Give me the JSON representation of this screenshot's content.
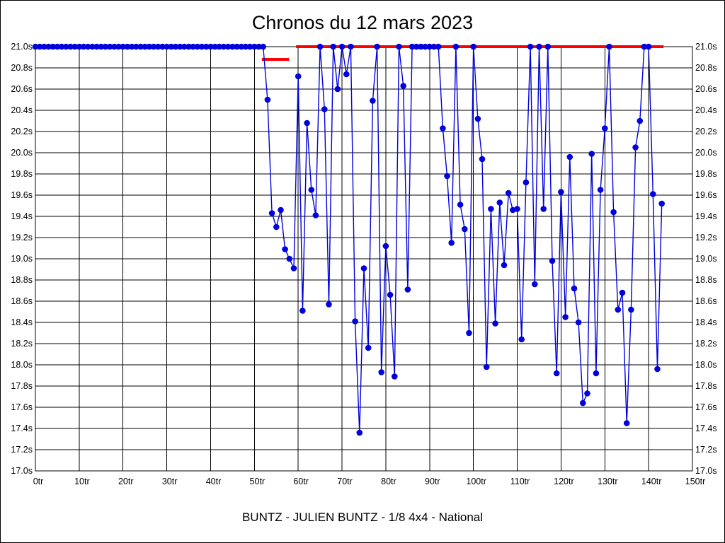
{
  "title": "Chronos du 12 mars 2023",
  "caption": "BUNTZ - JULIEN BUNTZ - 1/8 4x4 - National",
  "colors": {
    "series_blue": "#0000dd",
    "reference_red": "#ff0000",
    "grid": "#000000",
    "background": "#ffffff",
    "text": "#000000"
  },
  "chart_data": {
    "type": "line",
    "title": "Chronos du 12 mars 2023",
    "xlabel_unit": "tr",
    "ylabel_unit": "s",
    "xlim": [
      0,
      150
    ],
    "ylim": [
      17.0,
      21.0
    ],
    "x_tick_step": 10,
    "y_tick_step": 0.2,
    "grid": true,
    "x_tick_labels": [
      "0tr",
      "10tr",
      "20tr",
      "30tr",
      "40tr",
      "50tr",
      "60tr",
      "70tr",
      "80tr",
      "90tr",
      "100tr",
      "110tr",
      "120tr",
      "130tr",
      "140tr",
      "150tr"
    ],
    "y_tick_labels": [
      "17.0s",
      "17.2s",
      "17.4s",
      "17.6s",
      "17.8s",
      "18.0s",
      "18.2s",
      "18.4s",
      "18.6s",
      "18.8s",
      "19.0s",
      "19.2s",
      "19.4s",
      "19.6s",
      "19.8s",
      "20.0s",
      "20.2s",
      "20.4s",
      "20.6s",
      "20.8s",
      "21.0s"
    ],
    "series": [
      {
        "name": "chrono-per-lap",
        "lap_start": 0,
        "times": [
          21.0,
          21.0,
          21.0,
          21.0,
          21.0,
          21.0,
          21.0,
          21.0,
          21.0,
          21.0,
          21.0,
          21.0,
          21.0,
          21.0,
          21.0,
          21.0,
          21.0,
          21.0,
          21.0,
          21.0,
          21.0,
          21.0,
          21.0,
          21.0,
          21.0,
          21.0,
          21.0,
          21.0,
          21.0,
          21.0,
          21.0,
          21.0,
          21.0,
          21.0,
          21.0,
          21.0,
          21.0,
          21.0,
          21.0,
          21.0,
          21.0,
          21.0,
          21.0,
          21.0,
          21.0,
          21.0,
          21.0,
          21.0,
          21.0,
          21.0,
          21.0,
          21.0,
          21.0,
          20.5,
          19.43,
          19.3,
          19.46,
          19.09,
          19.0,
          18.91,
          20.72,
          18.51,
          20.28,
          19.65,
          19.41,
          21.0,
          20.41,
          18.57,
          21.0,
          20.6,
          21.0,
          20.74,
          21.0,
          18.41,
          17.36,
          18.91,
          18.16,
          20.49,
          21.0,
          17.93,
          19.12,
          18.66,
          17.89,
          21.0,
          20.63,
          18.71,
          21.0,
          21.0,
          21.0,
          21.0,
          21.0,
          21.0,
          21.0,
          20.23,
          19.78,
          19.15,
          21.0,
          19.51,
          19.28,
          18.3,
          21.0,
          20.32,
          19.94,
          17.98,
          19.47,
          18.39,
          19.53,
          18.94,
          19.62,
          19.46,
          19.47,
          18.24,
          19.72,
          21.0,
          18.76,
          21.0,
          19.47,
          21.0,
          18.98,
          17.92,
          19.63,
          18.45,
          19.96,
          18.72,
          18.4,
          17.64,
          17.73,
          19.99,
          17.92,
          19.65,
          20.23,
          21.0,
          19.44,
          18.52,
          18.68,
          17.45,
          18.52,
          20.05,
          20.3,
          21.0,
          21.0,
          19.61,
          17.96,
          19.52
        ]
      }
    ],
    "reference_marks": {
      "dashed_markers": {
        "lap_from": 0,
        "lap_to": 50,
        "value": 21.0
      },
      "solid_lines": [
        {
          "lap_from": 51.7,
          "lap_to": 57.9,
          "value": 20.88
        },
        {
          "lap_from": 59.5,
          "lap_to": 143.4,
          "value": 21.0
        }
      ]
    },
    "legend_position": "none"
  }
}
